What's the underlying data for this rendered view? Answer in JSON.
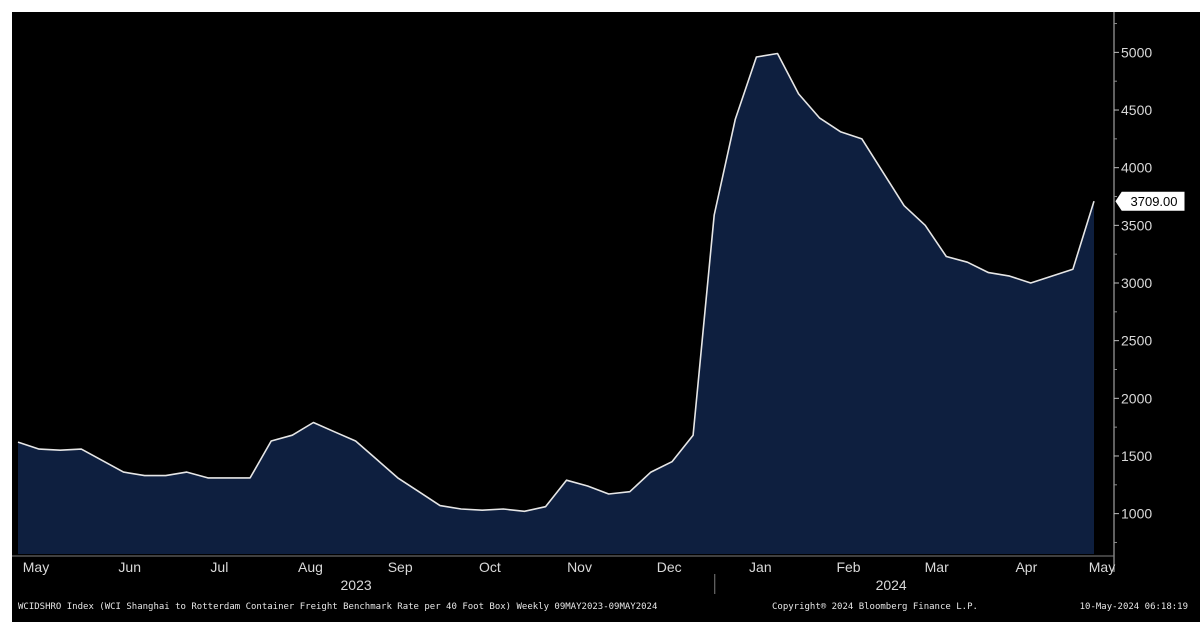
{
  "chart_data": {
    "type": "area",
    "x_start": "2023-05-09",
    "x_end": "2024-05-09",
    "y_ticks": [
      1000,
      1500,
      2000,
      2500,
      3000,
      3500,
      4000,
      4500,
      5000
    ],
    "ylim": [
      650,
      5350
    ],
    "values": [
      1620,
      1560,
      1550,
      1560,
      1460,
      1360,
      1330,
      1330,
      1360,
      1310,
      1310,
      1310,
      1630,
      1680,
      1790,
      1710,
      1630,
      1470,
      1310,
      1190,
      1070,
      1040,
      1030,
      1040,
      1020,
      1060,
      1290,
      1240,
      1170,
      1190,
      1360,
      1450,
      1680,
      3590,
      4420,
      4960,
      4990,
      4640,
      4430,
      4310,
      4250,
      3960,
      3670,
      3500,
      3230,
      3180,
      3090,
      3060,
      3000,
      3060,
      3120,
      3709
    ],
    "last_value_label": "3709.00",
    "month_labels": [
      "May",
      "Jun",
      "Jul",
      "Aug",
      "Sep",
      "Oct",
      "Nov",
      "Dec",
      "Jan",
      "Feb",
      "Mar",
      "Apr",
      "May"
    ],
    "year_labels": [
      "2023",
      "2024"
    ],
    "grid": false,
    "area_fill": "#0e1f3f",
    "line_color": "#e6e6e6",
    "background": "#000000"
  },
  "footer": {
    "description": "WCIDSHRO Index (WCI Shanghai to Rotterdam Container Freight Benchmark Rate per 40 Foot Box)  Weekly 09MAY2023-09MAY2024",
    "copyright": "Copyright® 2024 Bloomberg Finance L.P.",
    "timestamp": "10-May-2024 06:18:19"
  }
}
